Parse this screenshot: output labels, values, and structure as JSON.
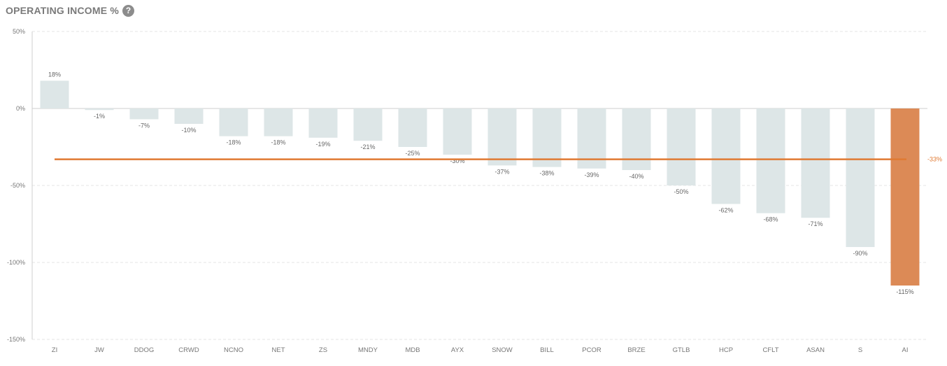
{
  "header": {
    "title": "OPERATING INCOME %",
    "help_icon": "question-circle-icon"
  },
  "colors": {
    "bar": "#dde6e7",
    "highlight": "#dc8a56",
    "average_line": "#e07a33",
    "grid": "#e6e6e6",
    "axis": "#cfcfcf"
  },
  "chart_data": {
    "type": "bar",
    "title": "OPERATING INCOME %",
    "xlabel": "",
    "ylabel": "",
    "ylim": [
      -150,
      50
    ],
    "yticks": [
      50,
      0,
      -50,
      -100,
      -150
    ],
    "ytick_labels": [
      "50%",
      "0%",
      "-50%",
      "-100%",
      "-150%"
    ],
    "grid": true,
    "categories": [
      "ZI",
      "JW",
      "DDOG",
      "CRWD",
      "NCNO",
      "NET",
      "ZS",
      "MNDY",
      "MDB",
      "AYX",
      "SNOW",
      "BILL",
      "PCOR",
      "BRZE",
      "GTLB",
      "HCP",
      "CFLT",
      "ASAN",
      "S",
      "AI"
    ],
    "values": [
      18,
      -1,
      -7,
      -10,
      -18,
      -18,
      -19,
      -21,
      -25,
      -30,
      -37,
      -38,
      -39,
      -40,
      -50,
      -62,
      -68,
      -71,
      -90,
      -115
    ],
    "data_labels": [
      "18%",
      "-1%",
      "-7%",
      "-10%",
      "-18%",
      "-18%",
      "-19%",
      "-21%",
      "-25%",
      "-30%",
      "-37%",
      "-38%",
      "-39%",
      "-40%",
      "-50%",
      "-62%",
      "-68%",
      "-71%",
      "-90%",
      "-115%"
    ],
    "highlight_category": "AI",
    "average": {
      "value": -33,
      "label": "-33%"
    }
  }
}
